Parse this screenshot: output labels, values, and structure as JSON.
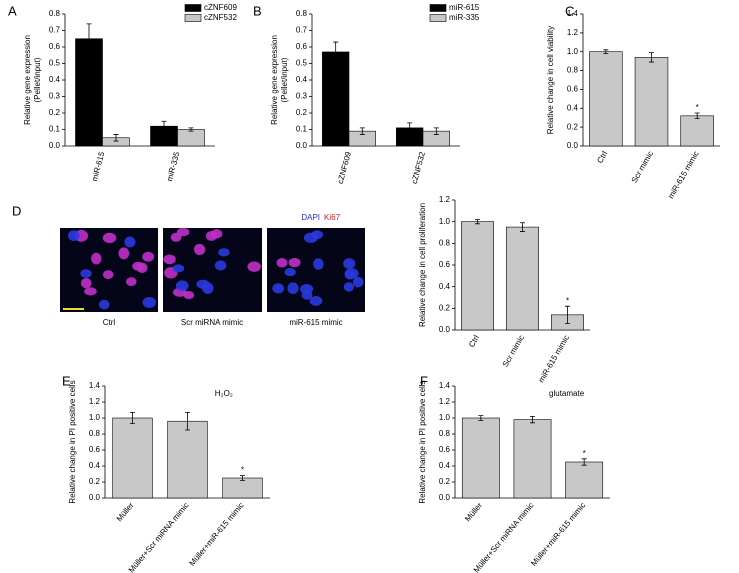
{
  "chart_data": [
    {
      "type": "bar",
      "label": "A",
      "ylabel": [
        "Relative gene expression",
        "(Pellet/input)"
      ],
      "categories": [
        "miR-615",
        "miR-335"
      ],
      "series": [
        {
          "name": "cZNF609",
          "color": "#000000",
          "values": [
            0.65,
            0.12
          ],
          "errors": [
            0.09,
            0.03
          ]
        },
        {
          "name": "cZNF532",
          "color": "#c8c8c8",
          "values": [
            0.05,
            0.1
          ],
          "errors": [
            0.02,
            0.01
          ]
        }
      ],
      "ylim": [
        0,
        0.8
      ],
      "yticks": [
        {
          "value": 0,
          "label": "0.0"
        },
        0.1,
        0.2,
        0.3,
        0.4,
        0.5,
        0.6,
        0.7,
        0.8
      ]
    },
    {
      "type": "bar",
      "label": "B",
      "ylabel": [
        "Relative gene expression",
        "(Pellet/input)"
      ],
      "categories": [
        "cZNF609",
        "cZNF532"
      ],
      "series": [
        {
          "name": "miR-615",
          "color": "#000000",
          "values": [
            0.57,
            0.11
          ],
          "errors": [
            0.06,
            0.03
          ]
        },
        {
          "name": "miR-335",
          "color": "#c8c8c8",
          "values": [
            0.09,
            0.09
          ],
          "errors": [
            0.02,
            0.02
          ]
        }
      ],
      "ylim": [
        0,
        0.8
      ],
      "yticks": [
        {
          "value": 0,
          "label": "0.0"
        },
        0.1,
        0.2,
        0.3,
        0.4,
        0.5,
        0.6,
        0.7,
        0.8
      ]
    },
    {
      "type": "bar",
      "label": "C",
      "ylabel": "Relative change in cell viability",
      "categories": [
        "Ctrl",
        "Scr mimic",
        "miR-615 mimic"
      ],
      "values": [
        1.0,
        0.94,
        0.32
      ],
      "errors": [
        0.02,
        0.05,
        0.03
      ],
      "significance": [
        null,
        null,
        "*"
      ],
      "color": "#c8c8c8",
      "ylim": [
        0,
        1.4
      ],
      "yticks": [
        {
          "value": 0,
          "label": "0.0"
        },
        0.2,
        0.4,
        0.6,
        0.8,
        {
          "value": 1,
          "label": "1.0"
        },
        1.2,
        1.4
      ]
    },
    {
      "type": "bar",
      "label": "D",
      "ylabel": "Relative change in cell proliferation",
      "categories": [
        "Ctrl",
        "Scr mimic",
        "miR-615 mimic"
      ],
      "values": [
        1.0,
        0.95,
        0.14
      ],
      "errors": [
        0.02,
        0.04,
        0.08
      ],
      "significance": [
        null,
        null,
        "*"
      ],
      "color": "#c8c8c8",
      "ylim": [
        0,
        1.2
      ],
      "yticks": [
        {
          "value": 0,
          "label": "0.0"
        },
        0.2,
        0.4,
        0.6,
        0.8,
        {
          "value": 1,
          "label": "1.0"
        },
        1.2
      ]
    },
    {
      "type": "bar",
      "label": "E",
      "title": "H₂O₂",
      "ylabel": "Relative change in PI positive cells",
      "categories": [
        "Müller",
        "Müller+Scr miRNA mimic",
        "Müller+miR-615 mimic"
      ],
      "values": [
        1.0,
        0.96,
        0.25
      ],
      "errors": [
        0.07,
        0.11,
        0.03
      ],
      "significance": [
        null,
        null,
        "*"
      ],
      "color": "#c8c8c8",
      "ylim": [
        0,
        1.4
      ],
      "yticks": [
        {
          "value": 0,
          "label": "0.0"
        },
        0.2,
        0.4,
        0.6,
        0.8,
        {
          "value": 1,
          "label": "1.0"
        },
        1.2,
        1.4
      ]
    },
    {
      "type": "bar",
      "label": "F",
      "title": "glutamate",
      "ylabel": "Relative change in PI positive cells",
      "categories": [
        "Müller",
        "Müller+Scr miRNA mimic",
        "Müller+miR-615 mimic"
      ],
      "values": [
        1.0,
        0.98,
        0.45
      ],
      "errors": [
        0.03,
        0.04,
        0.04
      ],
      "significance": [
        null,
        null,
        "*"
      ],
      "color": "#c8c8c8",
      "ylim": [
        0,
        1.4
      ],
      "yticks": [
        {
          "value": 0,
          "label": "0.0"
        },
        0.2,
        0.4,
        0.6,
        0.8,
        {
          "value": 1,
          "label": "1.0"
        },
        1.2,
        1.4
      ]
    }
  ],
  "image_panel": {
    "stains": [
      "DAPI",
      "Ki67"
    ],
    "captions": [
      "Ctrl",
      "Scr miRNA mimic",
      "miR-615 mimic"
    ]
  }
}
